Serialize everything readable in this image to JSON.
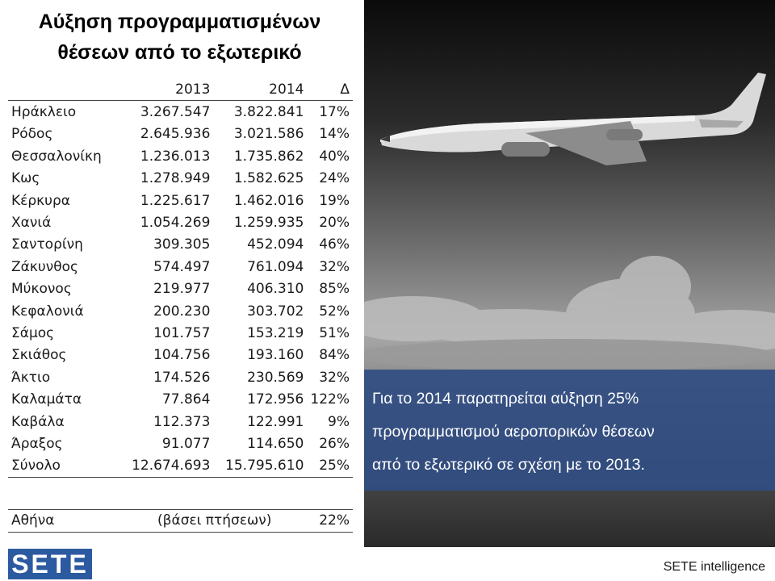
{
  "title": {
    "line1": "Αύξηση προγραμματισμένων",
    "line2": "θέσεων από το εξωτερικό"
  },
  "table": {
    "headers": [
      "2013",
      "2014",
      "Δ"
    ],
    "rows": [
      [
        "Ηράκλειο",
        "3.267.547",
        "3.822.841",
        "17%"
      ],
      [
        "Ρόδος",
        "2.645.936",
        "3.021.586",
        "14%"
      ],
      [
        "Θεσσαλονίκη",
        "1.236.013",
        "1.735.862",
        "40%"
      ],
      [
        "Κως",
        "1.278.949",
        "1.582.625",
        "24%"
      ],
      [
        "Κέρκυρα",
        "1.225.617",
        "1.462.016",
        "19%"
      ],
      [
        "Χανιά",
        "1.054.269",
        "1.259.935",
        "20%"
      ],
      [
        "Σαντορίνη",
        "309.305",
        "452.094",
        "46%"
      ],
      [
        "Ζάκυνθος",
        "574.497",
        "761.094",
        "32%"
      ],
      [
        "Μύκονος",
        "219.977",
        "406.310",
        "85%"
      ],
      [
        "Κεφαλονιά",
        "200.230",
        "303.702",
        "52%"
      ],
      [
        "Σάμος",
        "101.757",
        "153.219",
        "51%"
      ],
      [
        "Σκιάθος",
        "104.756",
        "193.160",
        "84%"
      ],
      [
        "Άκτιο",
        "174.526",
        "230.569",
        "32%"
      ],
      [
        "Καλαμάτα",
        "77.864",
        "172.956",
        "122%"
      ],
      [
        "Καβάλα",
        "112.373",
        "122.991",
        "9%"
      ],
      [
        "Άραξος",
        "91.077",
        "114.650",
        "26%"
      ]
    ],
    "total": [
      "Σύνολο",
      "12.674.693",
      "15.795.610",
      "25%"
    ]
  },
  "athens": {
    "name": "Αθήνα",
    "basis": "(βάσει πτήσεων)",
    "change": "22%"
  },
  "caption": {
    "line1": "Για το 2014 παρατηρείται αύξηση 25%",
    "line2": "προγραμματισμού αεροπορικών θέσεων",
    "line3": "από το εξωτερικό σε σχέση με το 2013."
  },
  "photo": {
    "subject": "airplane-in-sky"
  },
  "logo": {
    "text": "SETE"
  },
  "footer": {
    "brand": "SETE intelligence"
  },
  "colors": {
    "caption_bg": "#314e82",
    "logo_bg": "#2c5aa0"
  }
}
